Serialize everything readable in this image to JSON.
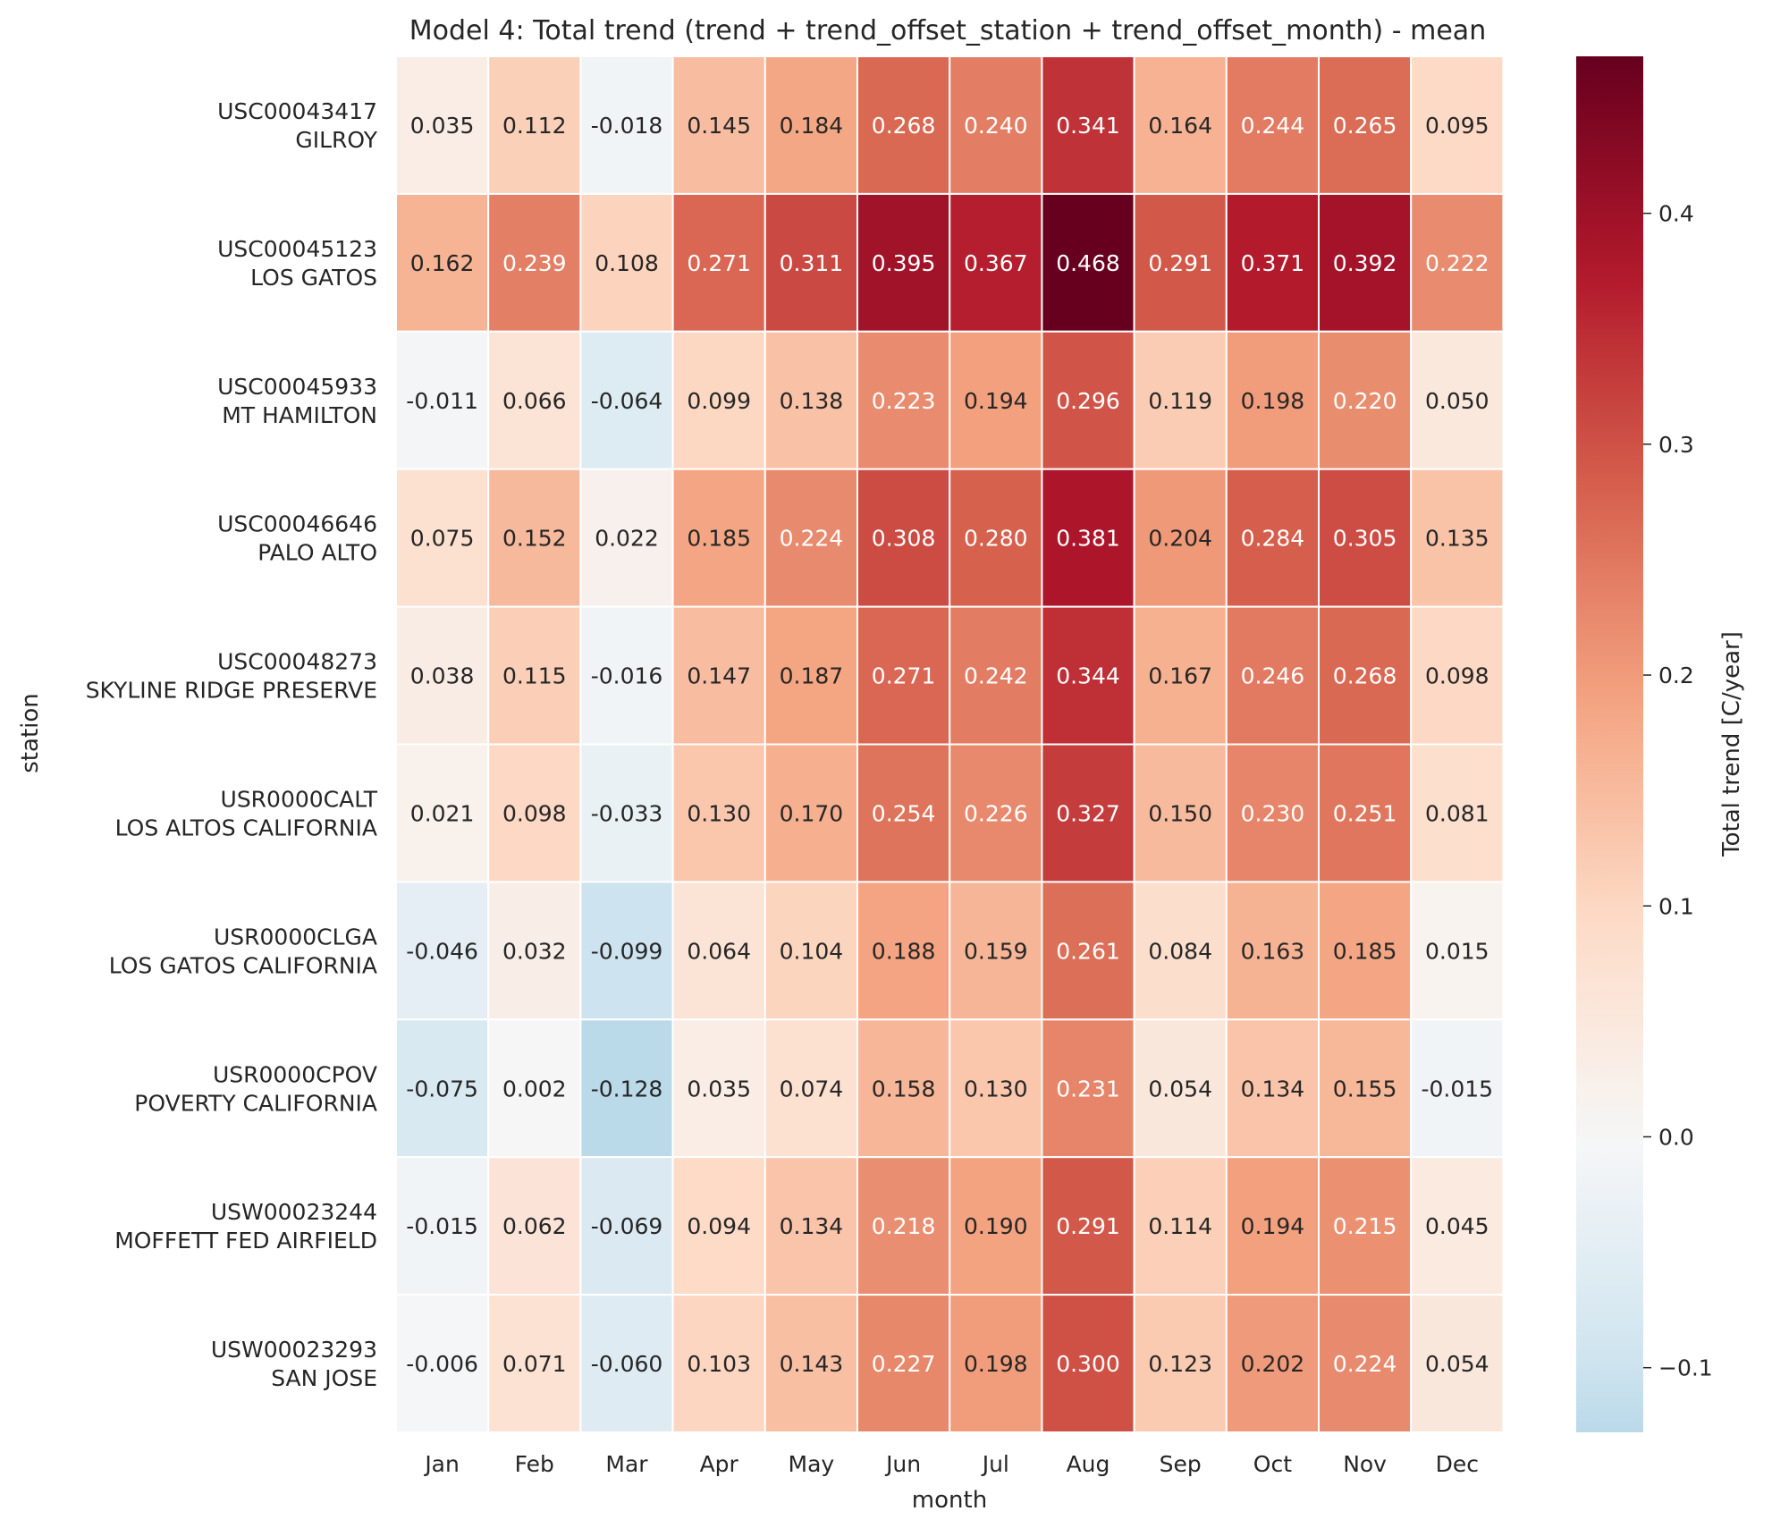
{
  "chart_data": {
    "type": "heatmap",
    "title": "Model 4: Total trend (trend + trend_offset_station + trend_offset_month) - mean",
    "xlabel": "month",
    "ylabel": "station",
    "colorbar_label": "Total trend [C/year]",
    "colormap": "RdBu_r (centered at 0)",
    "vmin": -0.128,
    "vmax": 0.468,
    "colorbar_ticks": [
      "−0.1",
      "0.0",
      "0.1",
      "0.2",
      "0.3",
      "0.4"
    ],
    "colorbar_tick_values": [
      -0.1,
      0.0,
      0.1,
      0.2,
      0.3,
      0.4
    ],
    "x_categories": [
      "Jan",
      "Feb",
      "Mar",
      "Apr",
      "May",
      "Jun",
      "Jul",
      "Aug",
      "Sep",
      "Oct",
      "Nov",
      "Dec"
    ],
    "y_categories": [
      {
        "id": "USC00043417",
        "name": "GILROY"
      },
      {
        "id": "USC00045123",
        "name": "LOS GATOS"
      },
      {
        "id": "USC00045933",
        "name": "MT HAMILTON"
      },
      {
        "id": "USC00046646",
        "name": "PALO ALTO"
      },
      {
        "id": "USC00048273",
        "name": "SKYLINE RIDGE PRESERVE"
      },
      {
        "id": "USR0000CALT",
        "name": "LOS ALTOS CALIFORNIA"
      },
      {
        "id": "USR0000CLGA",
        "name": "LOS GATOS CALIFORNIA"
      },
      {
        "id": "USR0000CPOV",
        "name": "POVERTY CALIFORNIA"
      },
      {
        "id": "USW00023244",
        "name": "MOFFETT FED AIRFIELD"
      },
      {
        "id": "USW00023293",
        "name": "SAN JOSE"
      }
    ],
    "values": [
      [
        0.035,
        0.112,
        -0.018,
        0.145,
        0.184,
        0.268,
        0.24,
        0.341,
        0.164,
        0.244,
        0.265,
        0.095
      ],
      [
        0.162,
        0.239,
        0.108,
        0.271,
        0.311,
        0.395,
        0.367,
        0.468,
        0.291,
        0.371,
        0.392,
        0.222
      ],
      [
        -0.011,
        0.066,
        -0.064,
        0.099,
        0.138,
        0.223,
        0.194,
        0.296,
        0.119,
        0.198,
        0.22,
        0.05
      ],
      [
        0.075,
        0.152,
        0.022,
        0.185,
        0.224,
        0.308,
        0.28,
        0.381,
        0.204,
        0.284,
        0.305,
        0.135
      ],
      [
        0.038,
        0.115,
        -0.016,
        0.147,
        0.187,
        0.271,
        0.242,
        0.344,
        0.167,
        0.246,
        0.268,
        0.098
      ],
      [
        0.021,
        0.098,
        -0.033,
        0.13,
        0.17,
        0.254,
        0.226,
        0.327,
        0.15,
        0.23,
        0.251,
        0.081
      ],
      [
        -0.046,
        0.032,
        -0.099,
        0.064,
        0.104,
        0.188,
        0.159,
        0.261,
        0.084,
        0.163,
        0.185,
        0.015
      ],
      [
        -0.075,
        0.002,
        -0.128,
        0.035,
        0.074,
        0.158,
        0.13,
        0.231,
        0.054,
        0.134,
        0.155,
        -0.015
      ],
      [
        -0.015,
        0.062,
        -0.069,
        0.094,
        0.134,
        0.218,
        0.19,
        0.291,
        0.114,
        0.194,
        0.215,
        0.045
      ],
      [
        -0.006,
        0.071,
        -0.06,
        0.103,
        0.143,
        0.227,
        0.198,
        0.3,
        0.123,
        0.202,
        0.224,
        0.054
      ]
    ]
  }
}
